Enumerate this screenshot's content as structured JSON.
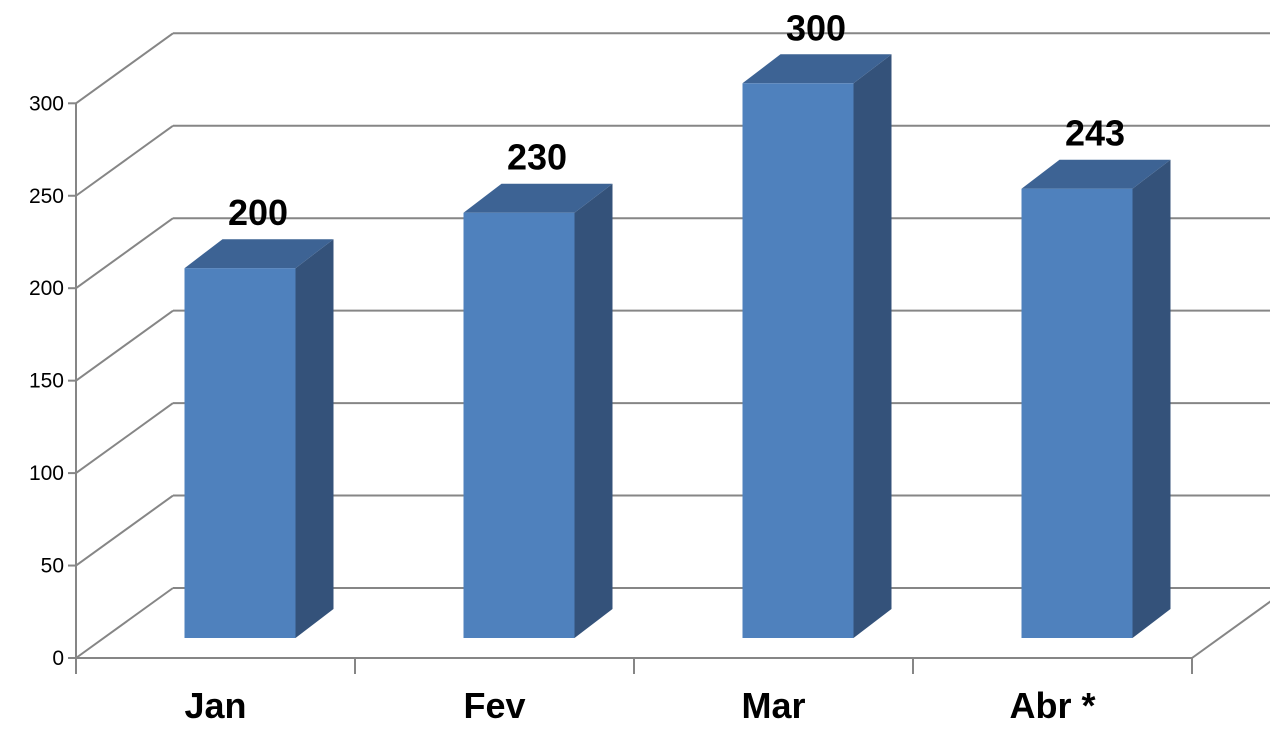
{
  "chart_data": {
    "type": "bar",
    "style": "3d-column",
    "title": "",
    "xlabel": "",
    "ylabel": "",
    "categories": [
      "Jan",
      "Fev",
      "Mar",
      "Abr *"
    ],
    "values": [
      200,
      230,
      300,
      243
    ],
    "data_labels": [
      "200",
      "230",
      "300",
      "243"
    ],
    "ylim": [
      0,
      300
    ],
    "y_ticks": [
      0,
      50,
      100,
      150,
      200,
      250,
      300
    ],
    "y_tick_labels": [
      "0",
      "50",
      "100",
      "150",
      "200",
      "250",
      "300"
    ],
    "grid": true,
    "legend": "none",
    "colors": {
      "bar_front": "#4F81BD",
      "bar_side": "#34527A",
      "bar_top": "#3D6394",
      "grid": "#868686",
      "text": "#000000"
    }
  }
}
